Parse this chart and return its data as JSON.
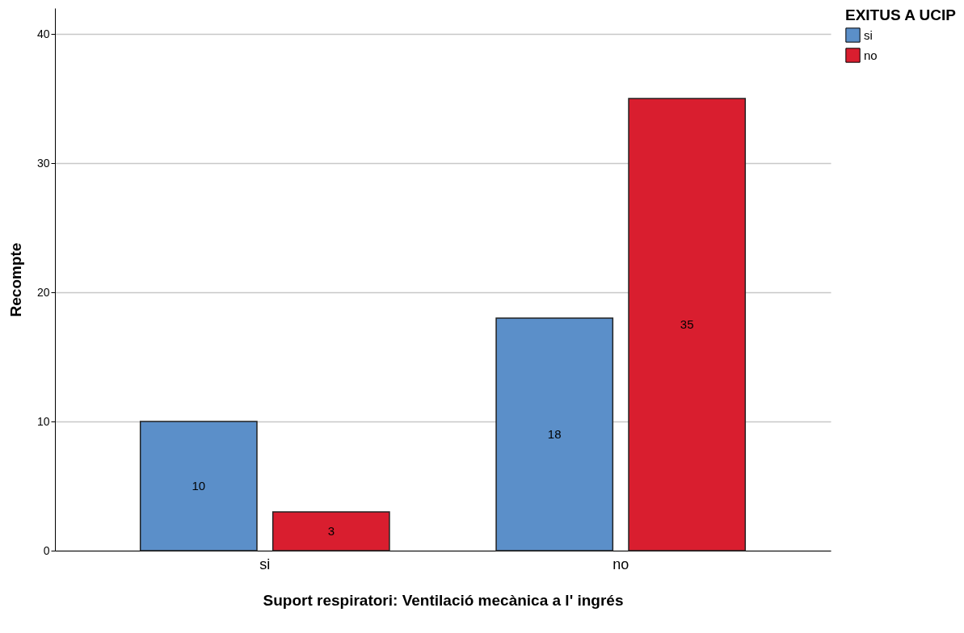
{
  "chart_data": {
    "type": "bar",
    "xlabel": "Suport respiratori: Ventilació mecànica a l' ingrés",
    "ylabel": "Recompte",
    "legend_title": "EXITUS A UCIP",
    "categories": [
      "si",
      "no"
    ],
    "series": [
      {
        "name": "si",
        "color": "#5b8fc9",
        "values": [
          10,
          18
        ]
      },
      {
        "name": "no",
        "color": "#d91e2f",
        "values": [
          3,
          35
        ]
      }
    ],
    "ylim": [
      0,
      42
    ],
    "yticks": [
      0,
      10,
      20,
      30,
      40
    ],
    "grid": "y",
    "legend": "top right",
    "data_labels": true
  }
}
